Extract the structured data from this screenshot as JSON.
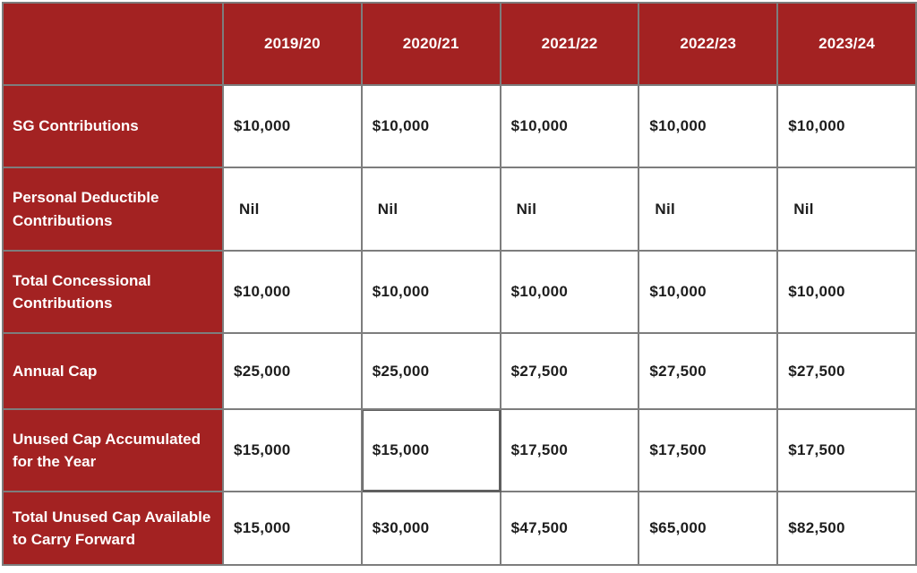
{
  "table": {
    "corner_label": "",
    "columns": [
      "2019/20",
      "2020/21",
      "2021/22",
      "2022/23",
      "2023/24"
    ],
    "rows": [
      {
        "label": "SG Contributions",
        "values": [
          "$10,000",
          "$10,000",
          "$10,000",
          "$10,000",
          "$10,000"
        ]
      },
      {
        "label": "Personal Deductible Contributions",
        "values": [
          "Nil",
          "Nil",
          "Nil",
          "Nil",
          "Nil"
        ]
      },
      {
        "label": "Total Concessional Contributions",
        "values": [
          "$10,000",
          "$10,000",
          "$10,000",
          "$10,000",
          "$10,000"
        ]
      },
      {
        "label": "Annual Cap",
        "values": [
          "$25,000",
          "$25,000",
          "$27,500",
          "$27,500",
          "$27,500"
        ]
      },
      {
        "label": "Unused Cap Accumulated for the Year",
        "values": [
          "$15,000",
          "$15,000",
          "$17,500",
          "$17,500",
          "$17,500"
        ]
      },
      {
        "label": "Total Unused Cap Available to Carry Forward",
        "values": [
          "$15,000",
          "$30,000",
          "$47,500",
          "$65,000",
          "$82,500"
        ]
      }
    ],
    "highlighted_cell": {
      "row_index": 4,
      "col_index": 1
    }
  },
  "chart_data": {
    "type": "table",
    "title": "",
    "categories": [
      "2019/20",
      "2020/21",
      "2021/22",
      "2022/23",
      "2023/24"
    ],
    "series": [
      {
        "name": "SG Contributions",
        "values": [
          10000,
          10000,
          10000,
          10000,
          10000
        ]
      },
      {
        "name": "Personal Deductible Contributions",
        "values": [
          "Nil",
          "Nil",
          "Nil",
          "Nil",
          "Nil"
        ]
      },
      {
        "name": "Total Concessional Contributions",
        "values": [
          10000,
          10000,
          10000,
          10000,
          10000
        ]
      },
      {
        "name": "Annual Cap",
        "values": [
          25000,
          25000,
          27500,
          27500,
          27500
        ]
      },
      {
        "name": "Unused Cap Accumulated for the Year",
        "values": [
          15000,
          15000,
          17500,
          17500,
          17500
        ]
      },
      {
        "name": "Total Unused Cap Available to Carry Forward",
        "values": [
          15000,
          30000,
          47500,
          65000,
          82500
        ]
      }
    ]
  },
  "colors": {
    "header_bg": "#A32222",
    "header_text": "#FFFFFF",
    "grid_border": "#7D7D7D",
    "value_text": "#1D1D1D",
    "cell_bg": "#FFFFFF",
    "highlight_border": "#5F5F5F"
  }
}
